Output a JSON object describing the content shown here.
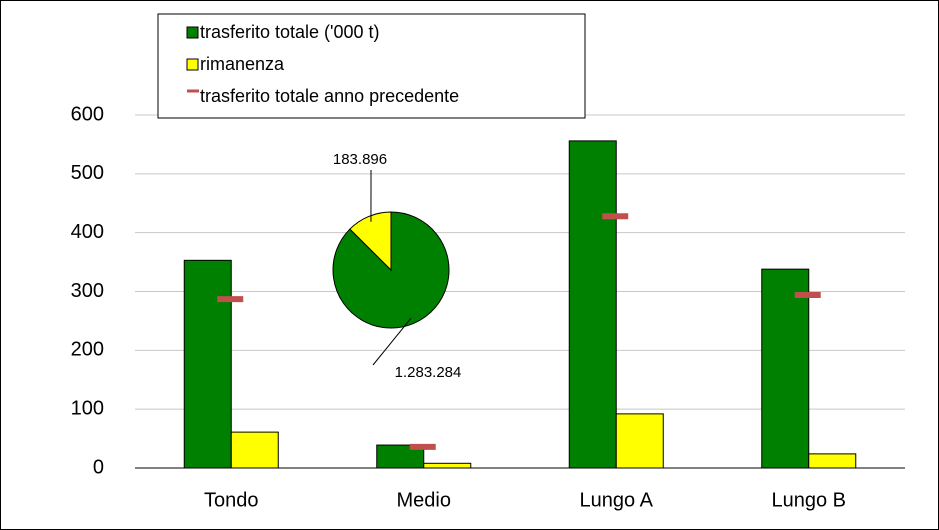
{
  "chart_data": [
    {
      "type": "bar",
      "categories": [
        "Tondo",
        "Medio",
        "Lungo A",
        "Lungo B"
      ],
      "series": [
        {
          "name": "trasferito totale ('000 t)",
          "color": "#008000",
          "values": [
            353,
            39,
            556,
            338
          ]
        },
        {
          "name": "rimanenza",
          "color": "#ffff00",
          "values": [
            61,
            8,
            92,
            24
          ]
        },
        {
          "name": "trasferito totale anno precedente",
          "color": "#c0504d",
          "type": "marker",
          "values": [
            287,
            36,
            428,
            294
          ]
        }
      ],
      "ylim": [
        0,
        600
      ],
      "yticks": [
        0,
        100,
        200,
        300,
        400,
        500,
        600
      ],
      "grid": true
    },
    {
      "type": "pie",
      "values": [
        1283284,
        183896
      ],
      "value_labels": [
        "1.283.284",
        "183.896"
      ],
      "colors": [
        "#008000",
        "#ffff00"
      ]
    }
  ]
}
